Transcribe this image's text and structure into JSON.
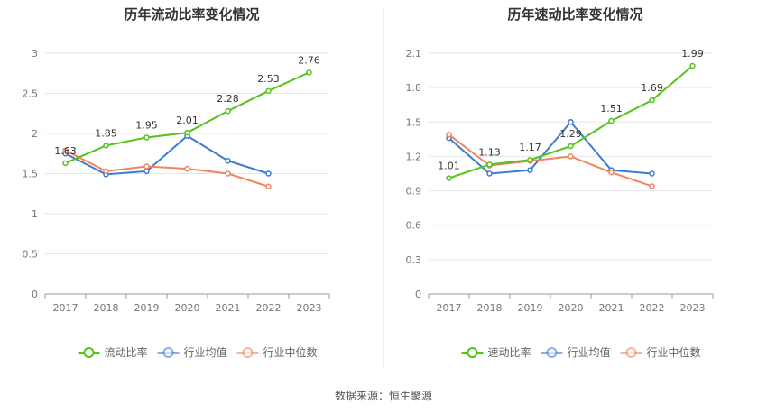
{
  "footer": {
    "source": "数据来源：恒生聚源"
  },
  "chart_data": [
    {
      "type": "line",
      "title": "历年流动比率变化情况",
      "categories": [
        "2017",
        "2018",
        "2019",
        "2020",
        "2021",
        "2022",
        "2023"
      ],
      "ylim": [
        0,
        3
      ],
      "yticks": [
        0,
        0.5,
        1,
        1.5,
        2,
        2.5,
        3
      ],
      "grid": true,
      "legend_position": "bottom",
      "series": [
        {
          "name": "流动比率",
          "color": "#52c41a",
          "values": [
            1.63,
            1.85,
            1.95,
            2.01,
            2.28,
            2.53,
            2.76
          ],
          "labels": [
            "1.63",
            "1.85",
            "1.95",
            "2.01",
            "2.28",
            "2.53",
            "2.76"
          ]
        },
        {
          "name": "行业均值",
          "color": "#3a7bd5",
          "values": [
            1.75,
            1.49,
            1.53,
            1.97,
            1.66,
            1.5,
            null
          ]
        },
        {
          "name": "行业中位数",
          "color": "#f0855f",
          "values": [
            1.79,
            1.53,
            1.59,
            1.56,
            1.5,
            1.34,
            null
          ]
        }
      ]
    },
    {
      "type": "line",
      "title": "历年速动比率变化情况",
      "categories": [
        "2017",
        "2018",
        "2019",
        "2020",
        "2021",
        "2022",
        "2023"
      ],
      "ylim": [
        0,
        2.1
      ],
      "yticks": [
        0,
        0.3,
        0.6,
        0.9,
        1.2,
        1.5,
        1.8,
        2.1
      ],
      "grid": true,
      "legend_position": "bottom",
      "series": [
        {
          "name": "速动比率",
          "color": "#52c41a",
          "values": [
            1.01,
            1.13,
            1.17,
            1.29,
            1.51,
            1.69,
            1.99
          ],
          "labels": [
            "1.01",
            "1.13",
            "1.17",
            "1.29",
            "1.51",
            "1.69",
            "1.99"
          ]
        },
        {
          "name": "行业均值",
          "color": "#3a7bd5",
          "values": [
            1.36,
            1.05,
            1.08,
            1.5,
            1.08,
            1.05,
            null
          ]
        },
        {
          "name": "行业中位数",
          "color": "#f0855f",
          "values": [
            1.39,
            1.12,
            1.16,
            1.2,
            1.06,
            0.94,
            null
          ]
        }
      ]
    }
  ]
}
